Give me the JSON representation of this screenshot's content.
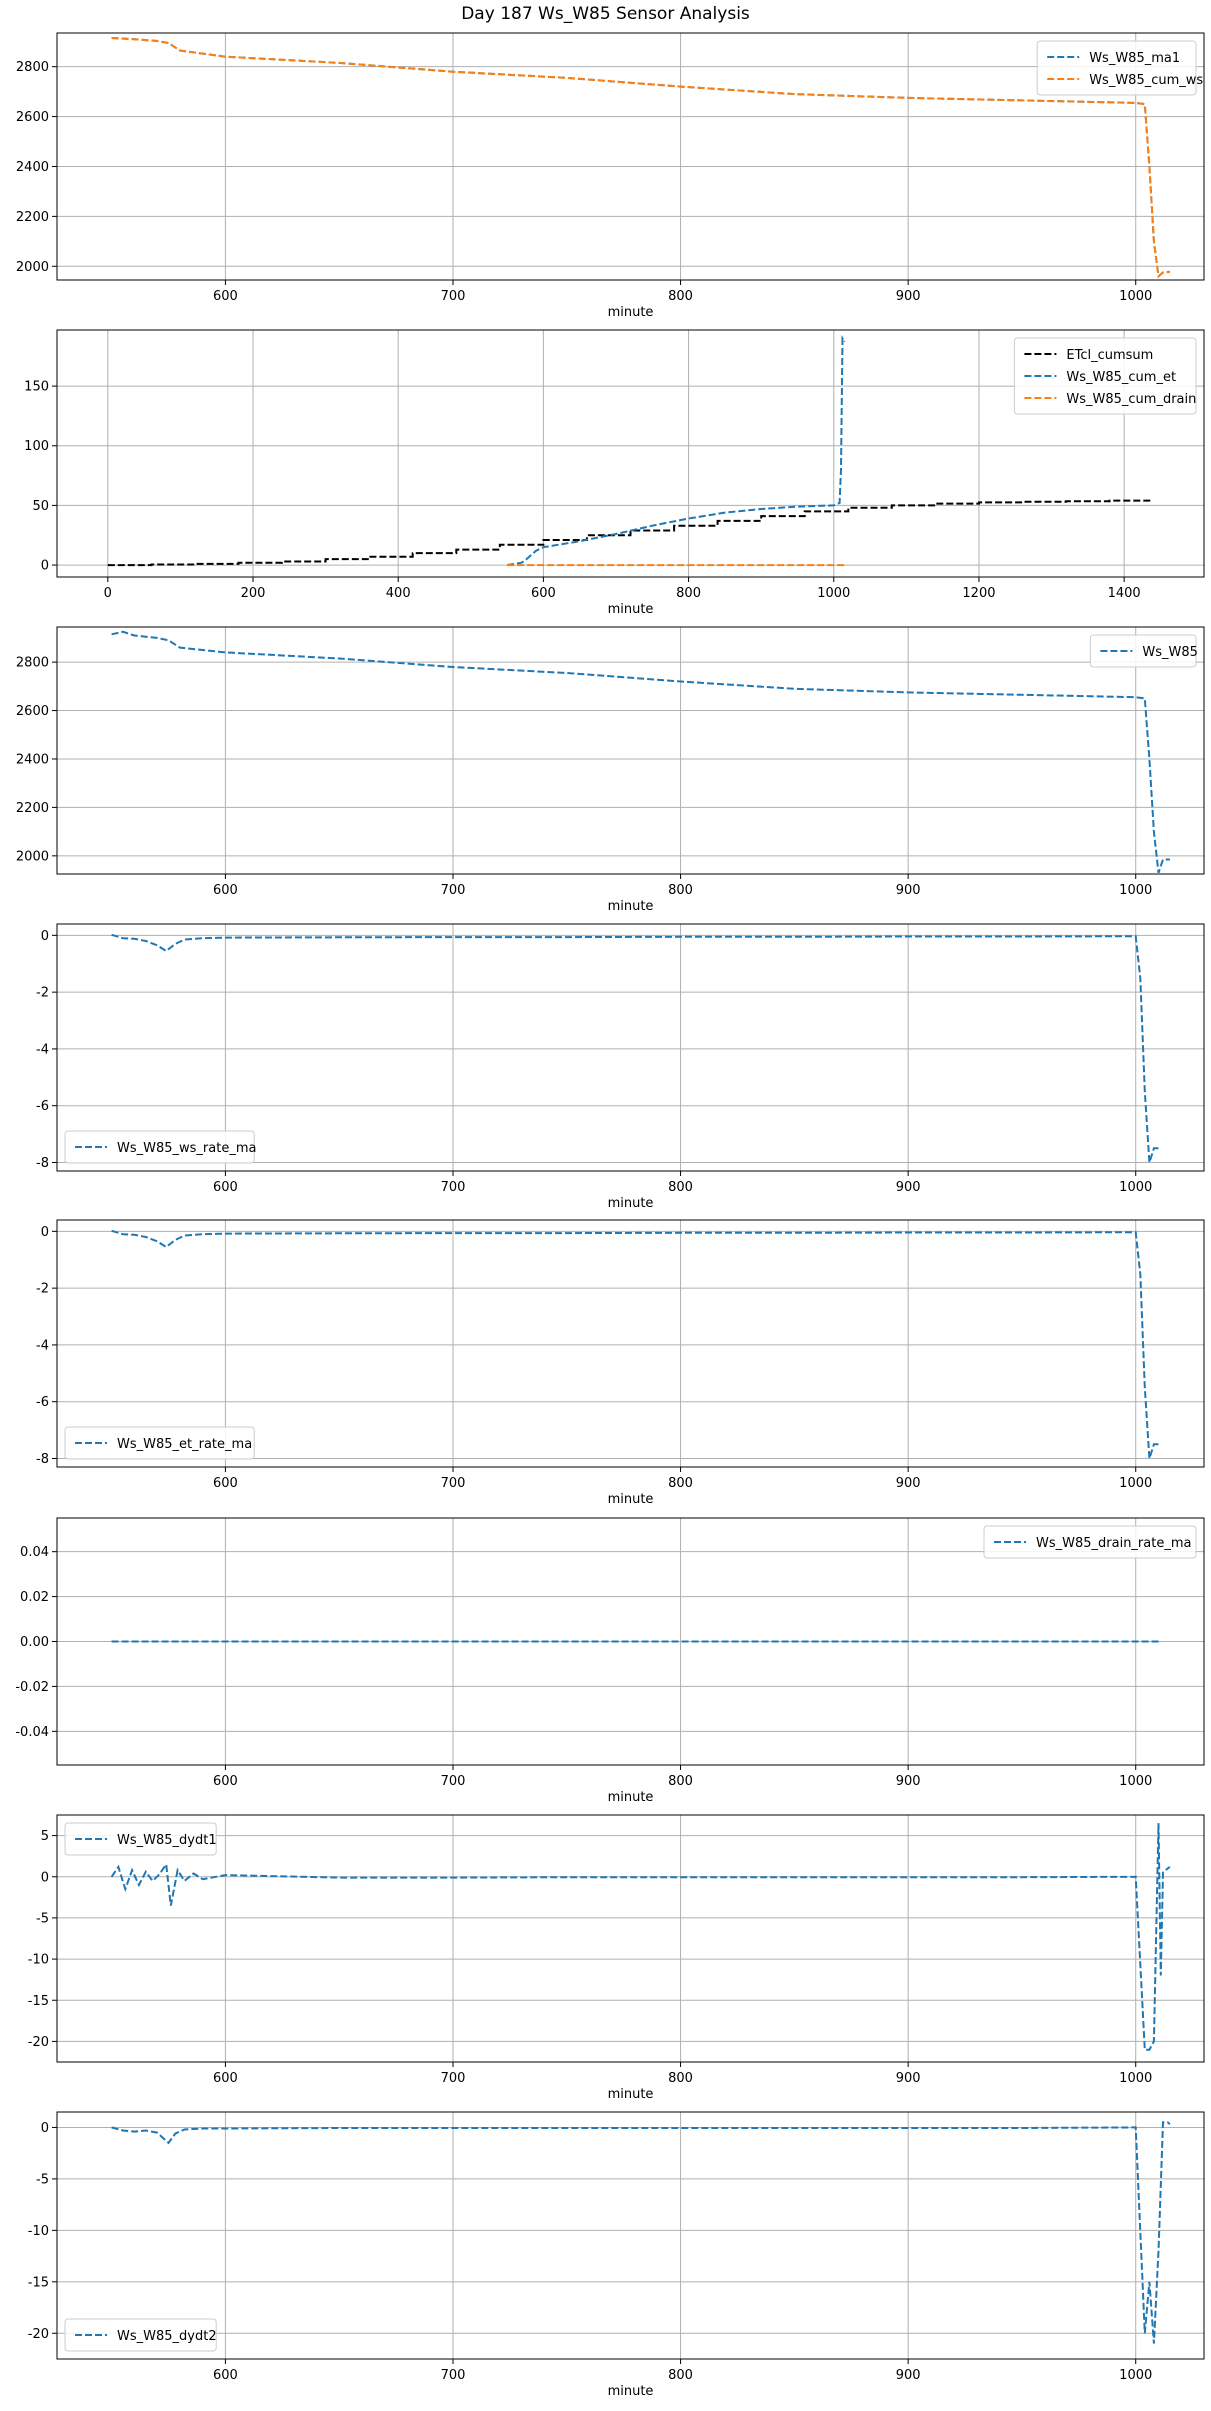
{
  "figure": {
    "title": "Day 187 Ws_W85 Sensor Analysis"
  },
  "colors": {
    "blue": "#1f77b4",
    "orange": "#ff7f0e",
    "black": "#000000",
    "grid": "#b0b0b0"
  },
  "chart_data": [
    {
      "type": "line",
      "title": "",
      "xlabel": "minute",
      "ylabel": "",
      "xlim": [
        526,
        1030
      ],
      "ylim": [
        1945,
        2935
      ],
      "xticks": [
        600,
        700,
        800,
        900,
        1000
      ],
      "yticks": [
        2000,
        2200,
        2400,
        2600,
        2800
      ],
      "grid": true,
      "legend": "upper right",
      "series": [
        {
          "name": "Ws_W85_ma1",
          "color": "#1f77b4",
          "style": "dashed",
          "x": [
            550,
            560,
            570,
            575,
            580,
            600,
            650,
            700,
            750,
            800,
            850,
            900,
            950,
            1000,
            1004,
            1006,
            1008,
            1010,
            1012,
            1015
          ],
          "y": [
            2915,
            2910,
            2903,
            2895,
            2865,
            2840,
            2815,
            2780,
            2755,
            2720,
            2690,
            2675,
            2665,
            2655,
            2650,
            2400,
            2100,
            1960,
            1975,
            1978
          ]
        },
        {
          "name": "Ws_W85_cum_ws",
          "color": "#ff7f0e",
          "style": "dashed",
          "x": [
            550,
            560,
            570,
            575,
            580,
            600,
            650,
            700,
            750,
            800,
            850,
            900,
            950,
            1000,
            1004,
            1006,
            1008,
            1010,
            1012,
            1015
          ],
          "y": [
            2915,
            2910,
            2903,
            2895,
            2865,
            2840,
            2815,
            2780,
            2755,
            2720,
            2690,
            2675,
            2665,
            2655,
            2650,
            2400,
            2100,
            1960,
            1975,
            1978
          ]
        }
      ]
    },
    {
      "type": "line",
      "title": "",
      "xlabel": "minute",
      "ylabel": "",
      "xlim": [
        -70,
        1510
      ],
      "ylim": [
        -10,
        197
      ],
      "xticks": [
        0,
        200,
        400,
        600,
        800,
        1000,
        1200,
        1400
      ],
      "yticks": [
        0,
        50,
        100,
        150
      ],
      "grid": true,
      "legend": "upper right",
      "series": [
        {
          "name": "ETcl_cumsum",
          "color": "#000000",
          "style": "dashed-step",
          "x": [
            0,
            60,
            120,
            180,
            240,
            300,
            360,
            420,
            480,
            540,
            600,
            660,
            720,
            780,
            840,
            900,
            960,
            1020,
            1080,
            1140,
            1200,
            1260,
            1320,
            1380,
            1440
          ],
          "y": [
            0,
            0.5,
            1,
            2,
            3,
            5,
            7,
            10,
            13,
            17,
            21,
            25,
            29,
            33,
            37,
            41,
            45,
            48,
            50,
            51.5,
            52.5,
            53,
            53.5,
            54,
            54
          ]
        },
        {
          "name": "Ws_W85_cum_et",
          "color": "#1f77b4",
          "style": "dashed",
          "x": [
            550,
            570,
            575,
            590,
            600,
            650,
            700,
            750,
            800,
            850,
            900,
            950,
            1000,
            1008,
            1010,
            1012,
            1015
          ],
          "y": [
            0,
            2,
            4,
            12,
            15,
            20,
            26,
            33,
            39,
            44,
            47,
            49,
            50,
            52,
            80,
            190,
            187
          ]
        },
        {
          "name": "Ws_W85_cum_drain",
          "color": "#ff7f0e",
          "style": "dashed",
          "x": [
            550,
            1015
          ],
          "y": [
            0,
            0
          ]
        }
      ]
    },
    {
      "type": "line",
      "title": "",
      "xlabel": "minute",
      "ylabel": "",
      "xlim": [
        526,
        1030
      ],
      "ylim": [
        1925,
        2945
      ],
      "xticks": [
        600,
        700,
        800,
        900,
        1000
      ],
      "yticks": [
        2000,
        2200,
        2400,
        2600,
        2800
      ],
      "grid": true,
      "legend": "upper right",
      "series": [
        {
          "name": "Ws_W85",
          "color": "#1f77b4",
          "style": "dashed",
          "x": [
            550,
            555,
            560,
            565,
            570,
            575,
            580,
            600,
            650,
            700,
            750,
            800,
            850,
            900,
            950,
            1000,
            1004,
            1006,
            1008,
            1010,
            1012,
            1015
          ],
          "y": [
            2915,
            2925,
            2910,
            2905,
            2900,
            2890,
            2860,
            2840,
            2815,
            2780,
            2755,
            2720,
            2690,
            2675,
            2665,
            2655,
            2650,
            2400,
            2100,
            1930,
            1985,
            1985
          ]
        }
      ]
    },
    {
      "type": "line",
      "title": "",
      "xlabel": "minute",
      "ylabel": "",
      "xlim": [
        526,
        1030
      ],
      "ylim": [
        -8.3,
        0.4
      ],
      "xticks": [
        600,
        700,
        800,
        900,
        1000
      ],
      "yticks": [
        -8,
        -6,
        -4,
        -2,
        0
      ],
      "grid": true,
      "legend": "lower left",
      "series": [
        {
          "name": "Ws_W85_ws_rate_ma",
          "color": "#1f77b4",
          "style": "dashed",
          "x": [
            550,
            555,
            560,
            565,
            570,
            574,
            578,
            582,
            590,
            600,
            650,
            700,
            750,
            800,
            850,
            900,
            950,
            1000,
            1002,
            1004,
            1006,
            1008,
            1010
          ],
          "y": [
            0.02,
            -0.1,
            -0.12,
            -0.2,
            -0.35,
            -0.55,
            -0.3,
            -0.15,
            -0.1,
            -0.08,
            -0.07,
            -0.06,
            -0.06,
            -0.05,
            -0.05,
            -0.04,
            -0.04,
            -0.03,
            -1.5,
            -5.5,
            -8.0,
            -7.5,
            -7.5
          ]
        }
      ]
    },
    {
      "type": "line",
      "title": "",
      "xlabel": "minute",
      "ylabel": "",
      "xlim": [
        526,
        1030
      ],
      "ylim": [
        -8.3,
        0.4
      ],
      "xticks": [
        600,
        700,
        800,
        900,
        1000
      ],
      "yticks": [
        -8,
        -6,
        -4,
        -2,
        0
      ],
      "grid": true,
      "legend": "lower left",
      "series": [
        {
          "name": "Ws_W85_et_rate_ma",
          "color": "#1f77b4",
          "style": "dashed",
          "x": [
            550,
            555,
            560,
            565,
            570,
            574,
            578,
            582,
            590,
            600,
            650,
            700,
            750,
            800,
            850,
            900,
            950,
            1000,
            1002,
            1004,
            1006,
            1008,
            1010
          ],
          "y": [
            0.02,
            -0.1,
            -0.12,
            -0.2,
            -0.35,
            -0.55,
            -0.3,
            -0.15,
            -0.1,
            -0.08,
            -0.07,
            -0.06,
            -0.06,
            -0.05,
            -0.05,
            -0.04,
            -0.04,
            -0.03,
            -1.5,
            -5.5,
            -8.0,
            -7.5,
            -7.5
          ]
        }
      ]
    },
    {
      "type": "line",
      "title": "",
      "xlabel": "minute",
      "ylabel": "",
      "xlim": [
        526,
        1030
      ],
      "ylim": [
        -0.055,
        0.055
      ],
      "xticks": [
        600,
        700,
        800,
        900,
        1000
      ],
      "yticks": [
        -0.04,
        -0.02,
        0.0,
        0.02,
        0.04
      ],
      "ytick_labels": [
        "-0.04",
        "-0.02",
        "0.00",
        "0.02",
        "0.04"
      ],
      "grid": true,
      "legend": "upper right",
      "series": [
        {
          "name": "Ws_W85_drain_rate_ma",
          "color": "#1f77b4",
          "style": "dashed",
          "x": [
            550,
            1010
          ],
          "y": [
            0,
            0
          ]
        }
      ]
    },
    {
      "type": "line",
      "title": "",
      "xlabel": "minute",
      "ylabel": "",
      "xlim": [
        526,
        1030
      ],
      "ylim": [
        -22.5,
        7.5
      ],
      "xticks": [
        600,
        700,
        800,
        900,
        1000
      ],
      "yticks": [
        -20,
        -15,
        -10,
        -5,
        0,
        5
      ],
      "grid": true,
      "legend": "upper left",
      "series": [
        {
          "name": "Ws_W85_dydt1",
          "color": "#1f77b4",
          "style": "dashed",
          "x": [
            550,
            553,
            556,
            559,
            562,
            565,
            568,
            571,
            574,
            576,
            579,
            582,
            586,
            590,
            600,
            650,
            700,
            750,
            800,
            850,
            900,
            950,
            1000,
            1004,
            1006,
            1008,
            1010,
            1011,
            1012,
            1014,
            1015
          ],
          "y": [
            0,
            1.2,
            -1.5,
            0.8,
            -1,
            0.6,
            -0.5,
            0.3,
            1.5,
            -3.5,
            0.8,
            -0.5,
            0.4,
            -0.3,
            0.2,
            -0.1,
            -0.1,
            -0.05,
            -0.05,
            -0.05,
            -0.05,
            -0.05,
            0,
            -21,
            -21,
            -20,
            6.5,
            -12,
            0.5,
            1,
            1.2
          ]
        }
      ]
    },
    {
      "type": "line",
      "title": "",
      "xlabel": "minute",
      "ylabel": "",
      "xlim": [
        526,
        1030
      ],
      "ylim": [
        -22.5,
        1.5
      ],
      "xticks": [
        600,
        700,
        800,
        900,
        1000
      ],
      "yticks": [
        -20,
        -15,
        -10,
        -5,
        0
      ],
      "grid": true,
      "legend": "lower left",
      "series": [
        {
          "name": "Ws_W85_dydt2",
          "color": "#1f77b4",
          "style": "dashed",
          "x": [
            550,
            555,
            560,
            565,
            570,
            575,
            578,
            582,
            590,
            600,
            650,
            700,
            750,
            800,
            850,
            900,
            950,
            1000,
            1004,
            1006,
            1008,
            1010,
            1012,
            1014,
            1015
          ],
          "y": [
            0,
            -0.3,
            -0.4,
            -0.3,
            -0.5,
            -1.5,
            -0.6,
            -0.2,
            -0.1,
            -0.1,
            -0.05,
            -0.05,
            -0.05,
            -0.05,
            -0.05,
            -0.05,
            -0.05,
            0,
            -20,
            -15,
            -21,
            -12,
            0.5,
            0.5,
            0.3
          ]
        }
      ]
    }
  ]
}
